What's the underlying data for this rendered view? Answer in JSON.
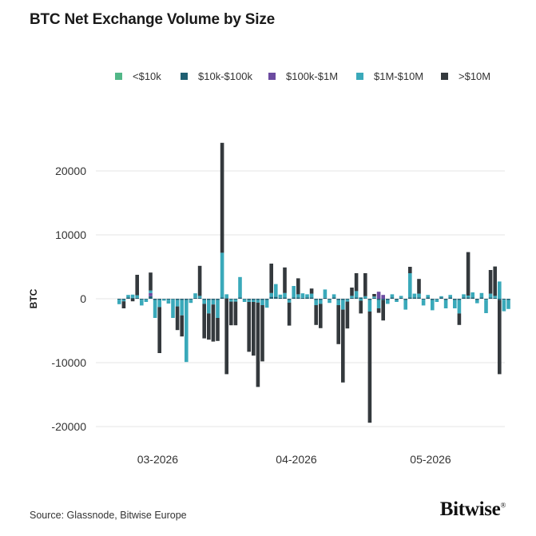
{
  "header": {
    "title": "BTC Net Exchange Volume by Size"
  },
  "footer": {
    "source": "Source: Glassnode, Bitwise Europe",
    "brand": "Bitwise",
    "brand_mark": "®"
  },
  "colors": {
    "<$10k": "#52b788",
    "$10k-$100k": "#1f5f72",
    "$100k-$1M": "#6c4ba0",
    "$1M-$10M": "#3aa9ba",
    ">$10M": "#34393d"
  },
  "chart_data": {
    "type": "bar",
    "stacked": true,
    "ylabel": "BTC",
    "xlabel": "",
    "ylim": [
      -23000,
      23000
    ],
    "yticks": [
      20000,
      10000,
      0,
      -10000,
      -20000
    ],
    "xtick_labels": [
      {
        "label": "03-2026",
        "day_index": 9
      },
      {
        "label": "04-2026",
        "day_index": 40
      },
      {
        "label": "05-2026",
        "day_index": 70
      }
    ],
    "grid": true,
    "legend_position": "top",
    "start_date": "2026-02-21",
    "series_names": [
      "<$10k",
      "$10k-$100k",
      "$100k-$1M",
      "$1M-$10M",
      ">$10M"
    ],
    "days": [
      {
        "date": "2026-02-21",
        "v": [
          0,
          -150,
          0,
          -700,
          0
        ]
      },
      {
        "date": "2026-02-22",
        "v": [
          0,
          -200,
          0,
          -200,
          -1100
        ]
      },
      {
        "date": "2026-02-23",
        "v": [
          0,
          200,
          0,
          400,
          0
        ]
      },
      {
        "date": "2026-02-24",
        "v": [
          0,
          150,
          0,
          500,
          -400
        ]
      },
      {
        "date": "2026-02-25",
        "v": [
          0,
          150,
          0,
          400,
          3200
        ]
      },
      {
        "date": "2026-02-26",
        "v": [
          0,
          -150,
          0,
          -900,
          0
        ]
      },
      {
        "date": "2026-02-27",
        "v": [
          0,
          -100,
          0,
          -400,
          0
        ]
      },
      {
        "date": "2026-02-28",
        "v": [
          0,
          400,
          500,
          400,
          2800
        ]
      },
      {
        "date": "2026-03-01",
        "v": [
          0,
          -200,
          0,
          -2800,
          0
        ]
      },
      {
        "date": "2026-03-02",
        "v": [
          0,
          -200,
          0,
          -1100,
          -7200
        ]
      },
      {
        "date": "2026-03-03",
        "v": [
          0,
          -100,
          0,
          -200,
          0
        ]
      },
      {
        "date": "2026-03-04",
        "v": [
          0,
          -150,
          0,
          -600,
          0
        ]
      },
      {
        "date": "2026-03-05",
        "v": [
          0,
          -100,
          0,
          -2900,
          0
        ]
      },
      {
        "date": "2026-03-06",
        "v": [
          0,
          -200,
          0,
          -1000,
          -3700
        ]
      },
      {
        "date": "2026-03-07",
        "v": [
          0,
          -200,
          0,
          -2400,
          -3300
        ]
      },
      {
        "date": "2026-03-08",
        "v": [
          0,
          -200,
          0,
          -9700,
          0
        ]
      },
      {
        "date": "2026-03-09",
        "v": [
          0,
          -150,
          0,
          -500,
          0
        ]
      },
      {
        "date": "2026-03-10",
        "v": [
          0,
          150,
          0,
          700,
          0
        ]
      },
      {
        "date": "2026-03-11",
        "v": [
          0,
          150,
          0,
          300,
          4700
        ]
      },
      {
        "date": "2026-03-12",
        "v": [
          0,
          -200,
          0,
          -600,
          -5400
        ]
      },
      {
        "date": "2026-03-13",
        "v": [
          0,
          -200,
          0,
          -2100,
          -4100
        ]
      },
      {
        "date": "2026-03-14",
        "v": [
          0,
          -200,
          0,
          -700,
          -5800
        ]
      },
      {
        "date": "2026-03-15",
        "v": [
          0,
          -200,
          0,
          -2800,
          -3600
        ]
      },
      {
        "date": "2026-03-16",
        "v": [
          0,
          200,
          0,
          7000,
          17200
        ]
      },
      {
        "date": "2026-03-17",
        "v": [
          0,
          100,
          0,
          600,
          -11800
        ]
      },
      {
        "date": "2026-03-18",
        "v": [
          0,
          -150,
          0,
          -300,
          -3700
        ]
      },
      {
        "date": "2026-03-19",
        "v": [
          0,
          -150,
          0,
          -300,
          -3700
        ]
      },
      {
        "date": "2026-03-20",
        "v": [
          0,
          200,
          0,
          3200,
          0
        ]
      },
      {
        "date": "2026-03-21",
        "v": [
          0,
          -100,
          0,
          -400,
          0
        ]
      },
      {
        "date": "2026-03-22",
        "v": [
          0,
          -200,
          0,
          -300,
          -7800
        ]
      },
      {
        "date": "2026-03-23",
        "v": [
          0,
          -200,
          0,
          -300,
          -8400
        ]
      },
      {
        "date": "2026-03-24",
        "v": [
          0,
          -200,
          0,
          -400,
          -13200
        ]
      },
      {
        "date": "2026-03-25",
        "v": [
          0,
          -200,
          0,
          -800,
          -8800
        ]
      },
      {
        "date": "2026-03-26",
        "v": [
          0,
          -200,
          0,
          -1200,
          0
        ]
      },
      {
        "date": "2026-03-27",
        "v": [
          0,
          300,
          0,
          600,
          4600
        ]
      },
      {
        "date": "2026-03-28",
        "v": [
          0,
          300,
          0,
          2000,
          0
        ]
      },
      {
        "date": "2026-03-29",
        "v": [
          0,
          150,
          0,
          500,
          0
        ]
      },
      {
        "date": "2026-03-30",
        "v": [
          0,
          200,
          0,
          700,
          4000
        ]
      },
      {
        "date": "2026-03-31",
        "v": [
          0,
          -200,
          0,
          -400,
          -3600
        ]
      },
      {
        "date": "2026-04-01",
        "v": [
          0,
          200,
          0,
          1800,
          0
        ]
      },
      {
        "date": "2026-04-02",
        "v": [
          0,
          200,
          0,
          500,
          2500
        ]
      },
      {
        "date": "2026-04-03",
        "v": [
          0,
          150,
          0,
          700,
          0
        ]
      },
      {
        "date": "2026-04-04",
        "v": [
          0,
          200,
          0,
          500,
          0
        ]
      },
      {
        "date": "2026-04-05",
        "v": [
          0,
          200,
          0,
          600,
          800
        ]
      },
      {
        "date": "2026-04-06",
        "v": [
          0,
          -200,
          0,
          -800,
          -3100
        ]
      },
      {
        "date": "2026-04-07",
        "v": [
          0,
          -200,
          0,
          -600,
          -3800
        ]
      },
      {
        "date": "2026-04-08",
        "v": [
          0,
          150,
          0,
          1300,
          0
        ]
      },
      {
        "date": "2026-04-09",
        "v": [
          0,
          -150,
          0,
          -500,
          0
        ]
      },
      {
        "date": "2026-04-10",
        "v": [
          0,
          200,
          0,
          500,
          0
        ]
      },
      {
        "date": "2026-04-11",
        "v": [
          0,
          -200,
          0,
          -800,
          -6100
        ]
      },
      {
        "date": "2026-04-12",
        "v": [
          0,
          -200,
          0,
          -1500,
          -11400
        ]
      },
      {
        "date": "2026-04-13",
        "v": [
          0,
          -150,
          0,
          -300,
          -4200
        ]
      },
      {
        "date": "2026-04-14",
        "v": [
          0,
          150,
          0,
          300,
          1300
        ]
      },
      {
        "date": "2026-04-15",
        "v": [
          0,
          200,
          0,
          1000,
          2800
        ]
      },
      {
        "date": "2026-04-16",
        "v": [
          0,
          200,
          0,
          -300,
          -2000
        ]
      },
      {
        "date": "2026-04-17",
        "v": [
          0,
          100,
          0,
          300,
          3600
        ]
      },
      {
        "date": "2026-04-18",
        "v": [
          0,
          -200,
          0,
          -1800,
          -17400
        ]
      },
      {
        "date": "2026-04-19",
        "v": [
          0,
          150,
          0,
          200,
          400
        ]
      },
      {
        "date": "2026-04-20",
        "v": [
          0,
          -200,
          1100,
          -1300,
          -700
        ]
      },
      {
        "date": "2026-04-21",
        "v": [
          0,
          -200,
          600,
          0,
          -3200
        ]
      },
      {
        "date": "2026-04-22",
        "v": [
          0,
          -200,
          0,
          -600,
          0
        ]
      },
      {
        "date": "2026-04-23",
        "v": [
          0,
          200,
          0,
          500,
          0
        ]
      },
      {
        "date": "2026-04-24",
        "v": [
          0,
          -200,
          0,
          -300,
          0
        ]
      },
      {
        "date": "2026-04-25",
        "v": [
          0,
          150,
          0,
          300,
          0
        ]
      },
      {
        "date": "2026-04-26",
        "v": [
          0,
          -200,
          0,
          -1500,
          0
        ]
      },
      {
        "date": "2026-04-27",
        "v": [
          0,
          200,
          0,
          3800,
          1000
        ]
      },
      {
        "date": "2026-04-28",
        "v": [
          0,
          200,
          0,
          600,
          0
        ]
      },
      {
        "date": "2026-04-29",
        "v": [
          0,
          200,
          0,
          600,
          2300
        ]
      },
      {
        "date": "2026-04-30",
        "v": [
          0,
          -150,
          0,
          -900,
          0
        ]
      },
      {
        "date": "2026-05-01",
        "v": [
          0,
          200,
          0,
          400,
          0
        ]
      },
      {
        "date": "2026-05-02",
        "v": [
          0,
          -200,
          0,
          -1600,
          0
        ]
      },
      {
        "date": "2026-05-03",
        "v": [
          0,
          -100,
          0,
          -400,
          0
        ]
      },
      {
        "date": "2026-05-04",
        "v": [
          0,
          200,
          0,
          200,
          0
        ]
      },
      {
        "date": "2026-05-05",
        "v": [
          0,
          -200,
          0,
          -1300,
          0
        ]
      },
      {
        "date": "2026-05-06",
        "v": [
          0,
          200,
          0,
          400,
          0
        ]
      },
      {
        "date": "2026-05-07",
        "v": [
          0,
          -200,
          0,
          -1300,
          0
        ]
      },
      {
        "date": "2026-05-08",
        "v": [
          0,
          -200,
          0,
          -2100,
          -1800
        ]
      },
      {
        "date": "2026-05-09",
        "v": [
          0,
          200,
          0,
          500,
          0
        ]
      },
      {
        "date": "2026-05-10",
        "v": [
          0,
          200,
          0,
          300,
          6800
        ]
      },
      {
        "date": "2026-05-11",
        "v": [
          0,
          200,
          0,
          800,
          0
        ]
      },
      {
        "date": "2026-05-12",
        "v": [
          0,
          -200,
          0,
          -500,
          0
        ]
      },
      {
        "date": "2026-05-13",
        "v": [
          0,
          200,
          0,
          700,
          0
        ]
      },
      {
        "date": "2026-05-14",
        "v": [
          0,
          -150,
          0,
          -2100,
          0
        ]
      },
      {
        "date": "2026-05-15",
        "v": [
          0,
          200,
          0,
          600,
          3700
        ]
      },
      {
        "date": "2026-05-16",
        "v": [
          0,
          150,
          0,
          300,
          4600
        ]
      },
      {
        "date": "2026-05-17",
        "v": [
          0,
          -200,
          0,
          2700,
          -11600
        ]
      },
      {
        "date": "2026-05-18",
        "v": [
          0,
          -150,
          0,
          -1800,
          0
        ]
      },
      {
        "date": "2026-05-19",
        "v": [
          0,
          -200,
          0,
          -1400,
          0
        ]
      }
    ]
  }
}
